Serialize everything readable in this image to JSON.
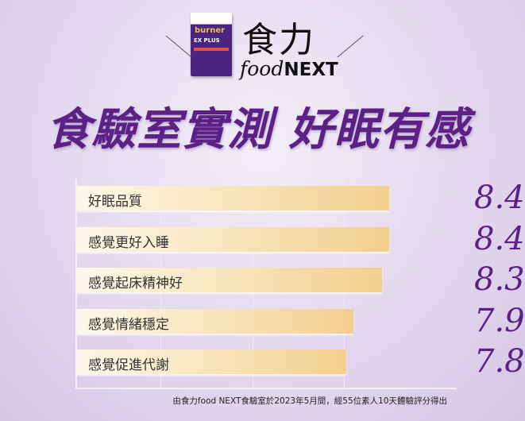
{
  "brand": {
    "logo_zh": "食力",
    "logo_en_script": "food",
    "logo_en_caps": "NEXT",
    "product_box": {
      "brand": "burner",
      "name": "EX PLUS"
    }
  },
  "title": "食驗室實測 好眠有感",
  "chart_data": {
    "type": "bar",
    "orientation": "horizontal",
    "categories": [
      "好眠品質",
      "感覺更好入睡",
      "感覺起床精神好",
      "感覺情緒穩定",
      "感覺促進代謝"
    ],
    "values": [
      8.4,
      8.4,
      8.3,
      7.9,
      7.8
    ],
    "value_labels": [
      "8.4",
      "8.4",
      "8.3",
      "7.9",
      "7.8"
    ],
    "grid": true,
    "colors": {
      "bar_start": "#fdf8ea",
      "bar_end": "#f4cf8e",
      "value": "#5b2186"
    }
  },
  "footnote": "由食力food NEXT食驗室於2023年5月間，經55位素人10天體驗評分得出"
}
